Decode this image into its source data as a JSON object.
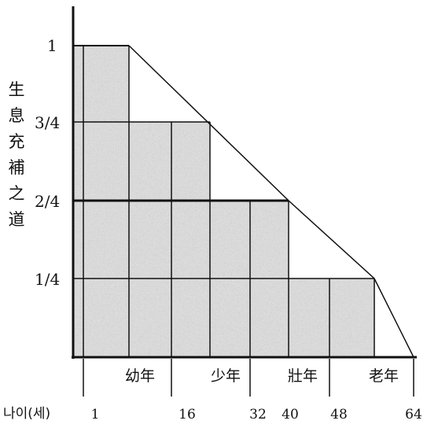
{
  "diagram": {
    "y_title_chars": [
      "生",
      "息",
      "充",
      "補",
      "之",
      "道"
    ],
    "y_ticks": [
      "1",
      "3/4",
      "2/4",
      "1/4"
    ],
    "stage_labels": [
      "幼年",
      "少年",
      "壯年",
      "老年"
    ],
    "age_axis_label": "나이(세)",
    "age_ticks": [
      "1",
      "16",
      "32",
      "40",
      "48",
      "64"
    ],
    "colors": {
      "line": "#111111",
      "fill": "#dcdcdc",
      "background": "#ffffff"
    }
  }
}
